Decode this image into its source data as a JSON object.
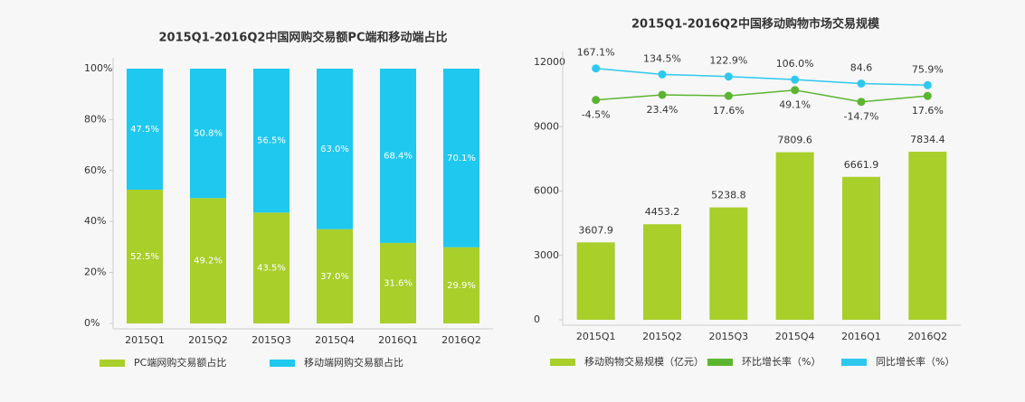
{
  "chart_data": [
    {
      "type": "stacked-bar",
      "title": "2015Q1-2016Q2中国网购交易额PC端和移动端占比",
      "categories": [
        "2015Q1",
        "2015Q2",
        "2015Q3",
        "2015Q4",
        "2016Q1",
        "2016Q2"
      ],
      "series": [
        {
          "name": "PC端网购交易额占比",
          "color": "#a8cf2a",
          "values": [
            52.5,
            49.2,
            43.5,
            37.0,
            31.6,
            29.9
          ],
          "value_labels": [
            "52.5%",
            "49.2%",
            "43.5%",
            "37.0%",
            "31.6%",
            "29.9%"
          ]
        },
        {
          "name": "移动端网购交易额占比",
          "color": "#1fc8ef",
          "values": [
            47.5,
            50.8,
            56.5,
            63.0,
            68.4,
            70.1
          ],
          "value_labels": [
            "47.5%",
            "50.8%",
            "56.5%",
            "63.0%",
            "68.4%",
            "70.1%"
          ]
        }
      ],
      "ylim": [
        0,
        100
      ],
      "yticks": [
        {
          "value": 0,
          "label": "0%"
        },
        {
          "value": 20,
          "label": "20%"
        },
        {
          "value": 40,
          "label": "40%"
        },
        {
          "value": 60,
          "label": "60%"
        },
        {
          "value": 80,
          "label": "80%"
        },
        {
          "value": 100,
          "label": "100%"
        }
      ]
    },
    {
      "type": "combo",
      "title": "2015Q1-2016Q2中国移动购物市场交易规模",
      "categories": [
        "2015Q1",
        "2015Q2",
        "2015Q3",
        "2015Q4",
        "2016Q1",
        "2016Q2"
      ],
      "series": [
        {
          "name": "移动购物交易规模（亿元）",
          "type": "bar",
          "color": "#a8cf2a",
          "values": [
            3607.9,
            4453.2,
            5238.8,
            7809.6,
            6661.9,
            7834.4
          ]
        },
        {
          "name": "环比增长率（%）",
          "type": "line",
          "axis": "y2",
          "color": "#5cb531",
          "values": [
            -4.5,
            23.4,
            17.6,
            49.1,
            -14.7,
            17.6
          ],
          "value_labels": [
            "-4.5%",
            "23.4%",
            "17.6%",
            "49.1%",
            "-14.7%",
            "17.6%"
          ]
        },
        {
          "name": "同比增长率（%）",
          "type": "line",
          "axis": "y2",
          "color": "#2ec8ef",
          "values": [
            167.1,
            134.5,
            122.9,
            106.0,
            84.6,
            75.9
          ],
          "value_labels": [
            "167.1%",
            "134.5%",
            "122.9%",
            "106.0%",
            "84.6",
            "75.9%"
          ]
        }
      ],
      "ylim": [
        0,
        12000
      ],
      "yticks": [
        0,
        3000,
        6000,
        9000,
        12000
      ],
      "y2lim": [
        -1200,
        200
      ]
    }
  ]
}
